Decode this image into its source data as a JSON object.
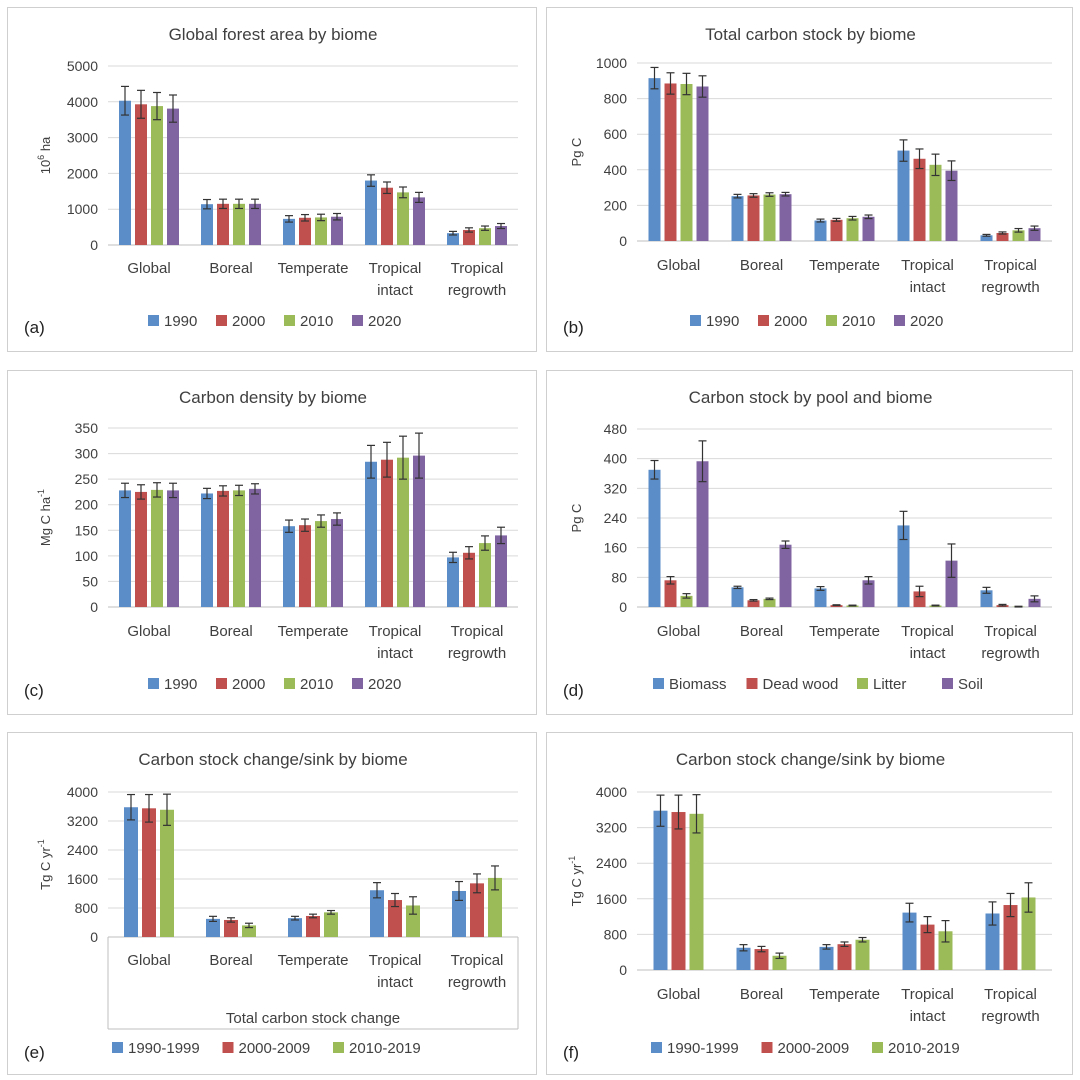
{
  "colors": {
    "blue": "#5b8ec9",
    "red": "#c0504d",
    "green": "#9bbb59",
    "purple": "#8064a2"
  },
  "chart_data": [
    {
      "id": "a",
      "panel_label": "(a)",
      "type": "bar",
      "title": "Global forest area by biome",
      "ylabel": "10",
      "ylabel_sup": "6",
      "ylabel_rest": " ha",
      "ylim": [
        0,
        5000
      ],
      "yticks": [
        0,
        1000,
        2000,
        3000,
        4000,
        5000
      ],
      "categories": [
        [
          "Global"
        ],
        [
          "Boreal"
        ],
        [
          "Temperate"
        ],
        [
          "Tropical",
          "intact"
        ],
        [
          "Tropical",
          "regrowth"
        ]
      ],
      "series": [
        {
          "name": "1990",
          "color": "#5b8ec9",
          "values": [
            4030,
            1140,
            730,
            1800,
            330
          ],
          "errors": [
            400,
            130,
            90,
            160,
            50
          ]
        },
        {
          "name": "2000",
          "color": "#c0504d",
          "values": [
            3930,
            1150,
            760,
            1600,
            420
          ],
          "errors": [
            390,
            130,
            90,
            160,
            60
          ]
        },
        {
          "name": "2010",
          "color": "#9bbb59",
          "values": [
            3880,
            1150,
            770,
            1470,
            470
          ],
          "errors": [
            380,
            130,
            90,
            150,
            60
          ]
        },
        {
          "name": "2020",
          "color": "#8064a2",
          "values": [
            3810,
            1150,
            790,
            1330,
            530
          ],
          "errors": [
            380,
            130,
            90,
            140,
            70
          ]
        }
      ],
      "xlabel": ""
    },
    {
      "id": "b",
      "panel_label": "(b)",
      "type": "bar",
      "title": "Total carbon stock by biome",
      "ylabel": "Pg C",
      "ylim": [
        0,
        1000
      ],
      "yticks": [
        0,
        200,
        400,
        600,
        800,
        1000
      ],
      "categories": [
        [
          "Global"
        ],
        [
          "Boreal"
        ],
        [
          "Temperate"
        ],
        [
          "Tropical",
          "intact"
        ],
        [
          "Tropical",
          "regrowth"
        ]
      ],
      "series": [
        {
          "name": "1990",
          "color": "#5b8ec9",
          "values": [
            915,
            252,
            115,
            508,
            32
          ],
          "errors": [
            60,
            10,
            8,
            60,
            5
          ]
        },
        {
          "name": "2000",
          "color": "#c0504d",
          "values": [
            885,
            256,
            119,
            462,
            45
          ],
          "errors": [
            60,
            10,
            8,
            55,
            6
          ]
        },
        {
          "name": "2010",
          "color": "#9bbb59",
          "values": [
            882,
            261,
            128,
            428,
            60
          ],
          "errors": [
            60,
            10,
            10,
            60,
            10
          ]
        },
        {
          "name": "2020",
          "color": "#8064a2",
          "values": [
            868,
            263,
            136,
            395,
            72
          ],
          "errors": [
            60,
            10,
            10,
            55,
            12
          ]
        }
      ],
      "xlabel": ""
    },
    {
      "id": "c",
      "panel_label": "(c)",
      "type": "bar",
      "title": "Carbon density by biome",
      "ylabel": "Mg C ha",
      "ylabel_sup": "-1",
      "ylabel_rest": "",
      "ylim": [
        0,
        350
      ],
      "yticks": [
        0,
        50,
        100,
        150,
        200,
        250,
        300,
        350
      ],
      "categories": [
        [
          "Global"
        ],
        [
          "Boreal"
        ],
        [
          "Temperate"
        ],
        [
          "Tropical",
          "intact"
        ],
        [
          "Tropical",
          "regrowth"
        ]
      ],
      "series": [
        {
          "name": "1990",
          "color": "#5b8ec9",
          "values": [
            228,
            222,
            158,
            284,
            97
          ],
          "errors": [
            14,
            10,
            12,
            32,
            10
          ]
        },
        {
          "name": "2000",
          "color": "#c0504d",
          "values": [
            225,
            227,
            160,
            288,
            106
          ],
          "errors": [
            14,
            10,
            12,
            34,
            12
          ]
        },
        {
          "name": "2010",
          "color": "#9bbb59",
          "values": [
            229,
            228,
            168,
            292,
            125
          ],
          "errors": [
            14,
            10,
            12,
            42,
            14
          ]
        },
        {
          "name": "2020",
          "color": "#8064a2",
          "values": [
            228,
            231,
            172,
            296,
            140
          ],
          "errors": [
            14,
            10,
            12,
            44,
            16
          ]
        }
      ],
      "xlabel": ""
    },
    {
      "id": "d",
      "panel_label": "(d)",
      "type": "bar",
      "title": "Carbon stock by pool and biome",
      "ylabel": "Pg C",
      "ylim": [
        0,
        480
      ],
      "yticks": [
        0,
        80,
        160,
        240,
        320,
        400,
        480
      ],
      "categories": [
        [
          "Global"
        ],
        [
          "Boreal"
        ],
        [
          "Temperate"
        ],
        [
          "Tropical",
          "intact"
        ],
        [
          "Tropical",
          "regrowth"
        ]
      ],
      "series": [
        {
          "name": "Biomass",
          "color": "#5b8ec9",
          "values": [
            370,
            53,
            50,
            220,
            45
          ],
          "errors": [
            25,
            3,
            5,
            38,
            8
          ]
        },
        {
          "name": "Dead wood",
          "color": "#c0504d",
          "values": [
            72,
            18,
            5,
            42,
            5
          ],
          "errors": [
            10,
            2,
            1,
            14,
            2
          ]
        },
        {
          "name": "Litter",
          "color": "#9bbb59",
          "values": [
            30,
            22,
            4,
            4,
            1
          ],
          "errors": [
            6,
            2,
            1,
            1,
            1
          ]
        },
        {
          "name": "Soil",
          "color": "#8064a2",
          "values": [
            393,
            168,
            72,
            125,
            22
          ],
          "errors": [
            55,
            10,
            10,
            45,
            8
          ]
        }
      ],
      "xlabel": ""
    },
    {
      "id": "e",
      "panel_label": "(e)",
      "type": "bar",
      "title": "Carbon stock change/sink by biome",
      "ylabel": "Tg C yr",
      "ylabel_sup": "-1",
      "ylabel_rest": "",
      "ylim": [
        0,
        4000
      ],
      "yticks": [
        0,
        800,
        1600,
        2400,
        3200,
        4000
      ],
      "categories": [
        [
          "Global"
        ],
        [
          "Boreal"
        ],
        [
          "Temperate"
        ],
        [
          "Tropical",
          "intact"
        ],
        [
          "Tropical",
          "regrowth"
        ]
      ],
      "series": [
        {
          "name": "1990-1999",
          "color": "#5b8ec9",
          "values": [
            3580,
            500,
            520,
            1290,
            1270
          ],
          "errors": [
            350,
            70,
            50,
            210,
            260
          ]
        },
        {
          "name": "2000-2009",
          "color": "#c0504d",
          "values": [
            3550,
            470,
            580,
            1020,
            1480
          ],
          "errors": [
            380,
            60,
            50,
            180,
            260
          ]
        },
        {
          "name": "2010-2019",
          "color": "#9bbb59",
          "values": [
            3510,
            320,
            680,
            870,
            1630
          ],
          "errors": [
            430,
            60,
            50,
            240,
            330
          ]
        }
      ],
      "xlabel": "Total carbon stock change"
    },
    {
      "id": "f",
      "panel_label": "(f)",
      "type": "bar",
      "title": "Carbon stock change/sink by biome",
      "ylabel": "Tg C yr",
      "ylabel_sup": "-1",
      "ylabel_rest": "",
      "ylim": [
        0,
        4000
      ],
      "yticks": [
        0,
        800,
        1600,
        2400,
        3200,
        4000
      ],
      "categories": [
        [
          "Global"
        ],
        [
          "Boreal"
        ],
        [
          "Temperate"
        ],
        [
          "Tropical",
          "intact"
        ],
        [
          "Tropical",
          "regrowth"
        ]
      ],
      "series": [
        {
          "name": "1990-1999",
          "color": "#5b8ec9",
          "values": [
            3580,
            500,
            520,
            1290,
            1270
          ],
          "errors": [
            350,
            70,
            50,
            210,
            260
          ]
        },
        {
          "name": "2000-2009",
          "color": "#c0504d",
          "values": [
            3550,
            470,
            580,
            1020,
            1460
          ],
          "errors": [
            380,
            60,
            50,
            180,
            260
          ]
        },
        {
          "name": "2010-2019",
          "color": "#9bbb59",
          "values": [
            3510,
            320,
            680,
            870,
            1630
          ],
          "errors": [
            430,
            60,
            50,
            240,
            330
          ]
        }
      ],
      "xlabel": ""
    }
  ]
}
